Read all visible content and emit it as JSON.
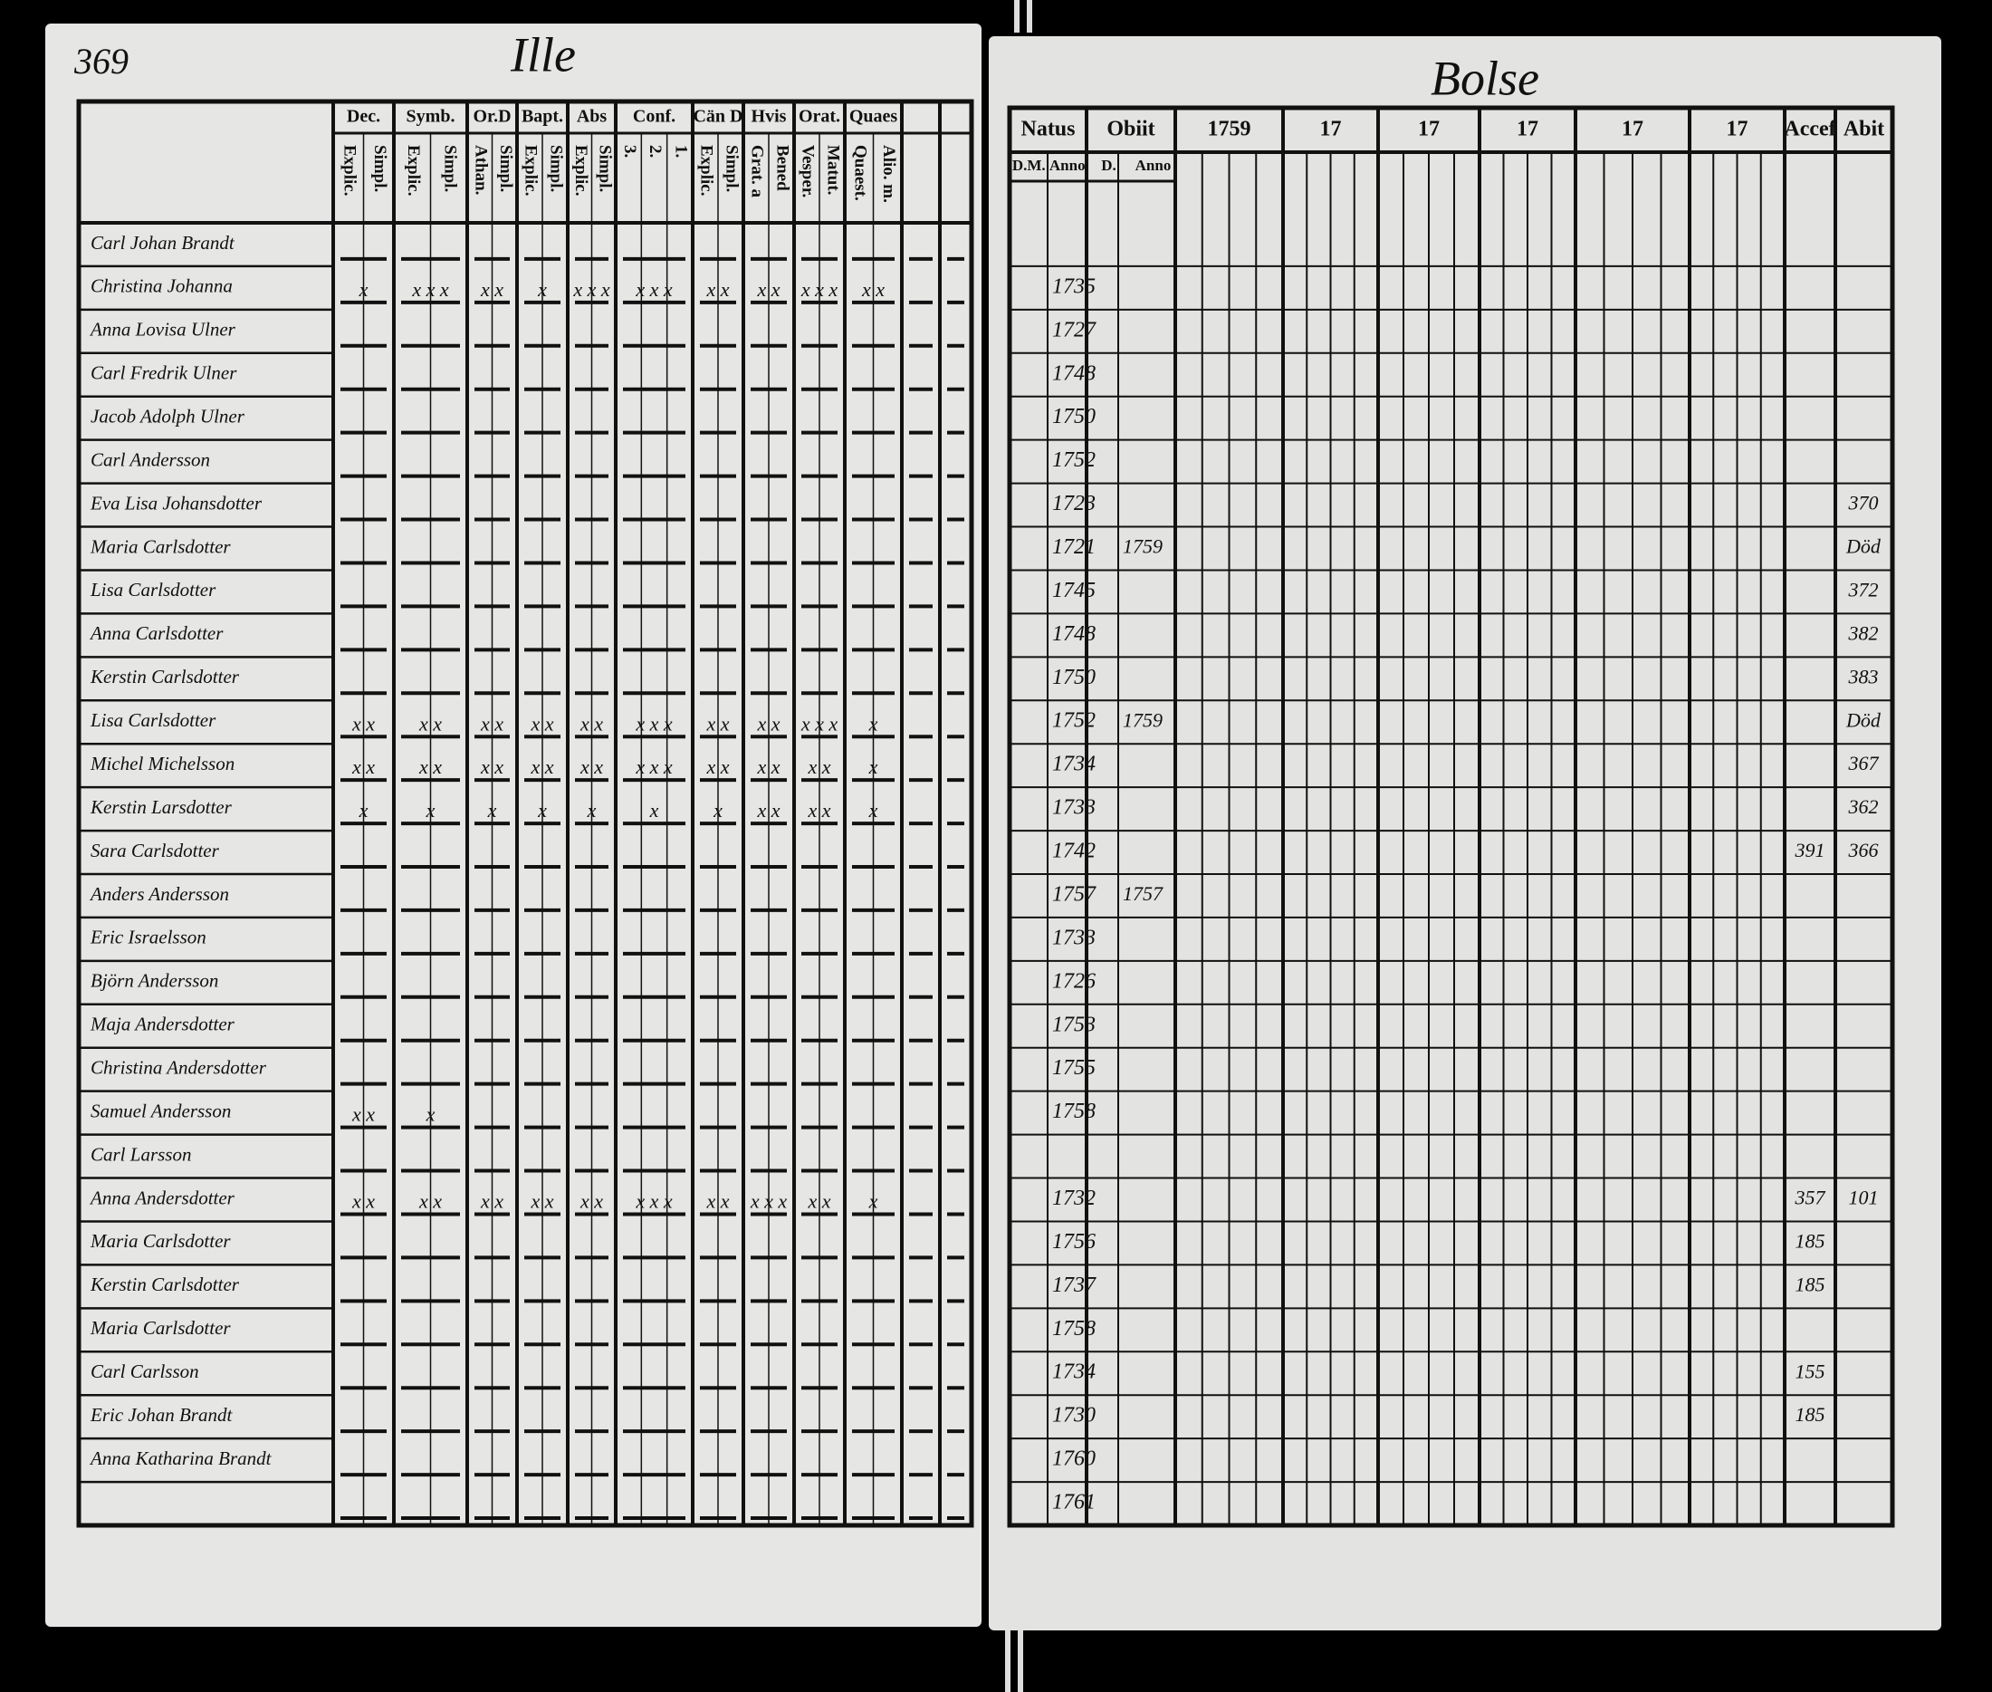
{
  "left_page": {
    "page_number": "369",
    "heading": "Ille",
    "columns": [
      {
        "title": "Dec.",
        "sub": [
          "Explic.",
          "Simpl."
        ]
      },
      {
        "title": "Symb.",
        "sub": [
          "Explic.",
          "Simpl."
        ]
      },
      {
        "title": "Or.D",
        "sub": [
          "Athan.",
          "Simpl."
        ]
      },
      {
        "title": "Bapt.",
        "sub": [
          "Explic.",
          "Simpl."
        ]
      },
      {
        "title": "Abs",
        "sub": [
          "Explic.",
          "Simpl."
        ]
      },
      {
        "title": "Conf.",
        "sub": [
          "3.",
          "2.",
          "1."
        ]
      },
      {
        "title": "Cän D",
        "sub": [
          "Explic.",
          "Simpl."
        ]
      },
      {
        "title": "Hvis",
        "sub": [
          "Grat. a",
          "Bened"
        ]
      },
      {
        "title": "Orat.",
        "sub": [
          "Vesper.",
          "Matut."
        ]
      },
      {
        "title": "Quaes",
        "sub": [
          "Quaest.",
          "Alio. m."
        ]
      }
    ]
  },
  "right_page": {
    "heading": "Bolse",
    "columns": [
      {
        "title": "Natus",
        "sub": [
          "D.M.",
          "Anno"
        ]
      },
      {
        "title": "Obiit",
        "sub": [
          "D.",
          "Anno"
        ]
      },
      {
        "title": "1759"
      },
      {
        "title": "17"
      },
      {
        "title": "17"
      },
      {
        "title": "17"
      },
      {
        "title": "17"
      },
      {
        "title": "17"
      },
      {
        "title": "Accef"
      },
      {
        "title": "Abit"
      }
    ]
  },
  "rows": [
    {
      "name": "Carl Johan Brandt"
    },
    {
      "name": "Christina Johanna",
      "born": "1735",
      "marks": [
        "x",
        "x x x",
        "x x",
        "x",
        "x x x",
        "x x x",
        "x x",
        "x x",
        "x x x",
        "x x"
      ]
    },
    {
      "name": "Anna Lovisa Ulner",
      "born": "1727"
    },
    {
      "name": "Carl Fredrik Ulner",
      "born": "1748"
    },
    {
      "name": "Jacob Adolph Ulner",
      "born": "1750"
    },
    {
      "name": "Carl Andersson",
      "born": "1752"
    },
    {
      "name": "Eva Lisa Johansdotter",
      "born": "1723",
      "abit": "370"
    },
    {
      "name": "Maria Carlsdotter",
      "born": "1721",
      "obiit": "1759",
      "abit": "Död"
    },
    {
      "name": "Lisa Carlsdotter",
      "born": "1745",
      "abit": "372"
    },
    {
      "name": "Anna Carlsdotter",
      "born": "1748",
      "abit": "382"
    },
    {
      "name": "Kerstin Carlsdotter",
      "born": "1750",
      "abit": "383"
    },
    {
      "name": "Lisa Carlsdotter",
      "born": "1752",
      "obiit": "1759",
      "abit": "Död",
      "marks": [
        "x x",
        "x x",
        "x x",
        "x x",
        "x x",
        "x x x",
        "x x",
        "x x",
        "x x x",
        "x"
      ]
    },
    {
      "name": "Michel Michelsson",
      "born": "1734",
      "abit": "367",
      "marks": [
        "x x",
        "x x",
        "x x",
        "x x",
        "x x",
        "x x x",
        "x x",
        "x x",
        "x x",
        "x"
      ]
    },
    {
      "name": "Kerstin Larsdotter",
      "born": "1733",
      "abit": "362",
      "marks": [
        "x",
        "x",
        "x",
        "x",
        "x",
        "x",
        "x",
        "x x",
        "x x",
        "x"
      ]
    },
    {
      "name": "Sara Carlsdotter",
      "born": "1742",
      "accessit": "391",
      "abit": "366"
    },
    {
      "name": "Anders Andersson",
      "born": "1757",
      "obiit": "1757"
    },
    {
      "name": "Eric Israelsson",
      "born": "1733"
    },
    {
      "name": "Björn Andersson",
      "born": "1726"
    },
    {
      "name": "Maja Andersdotter",
      "born": "1753"
    },
    {
      "name": "Christina Andersdotter",
      "born": "1755"
    },
    {
      "name": "Samuel Andersson",
      "born": "1758",
      "marks": [
        "x x",
        "x"
      ]
    },
    {
      "name": "Carl Larsson"
    },
    {
      "name": "Anna Andersdotter",
      "born": "1732",
      "accessit": "357",
      "abit": "101",
      "marks": [
        "x x",
        "x x",
        "x x",
        "x x",
        "x x",
        "x x x",
        "x x",
        "x x x",
        "x x",
        "x"
      ]
    },
    {
      "name": "Maria Carlsdotter",
      "born": "1756",
      "accessit": "185"
    },
    {
      "name": "Kerstin Carlsdotter",
      "born": "1737",
      "accessit": "185"
    },
    {
      "name": "Maria Carlsdotter",
      "born": "1758"
    },
    {
      "name": "Carl Carlsson",
      "born": "1734",
      "accessit": "155"
    },
    {
      "name": "Eric Johan Brandt",
      "born": "1730",
      "accessit": "185"
    },
    {
      "name": "Anna Katharina Brandt",
      "born": "1760"
    },
    {
      "born": "1761"
    }
  ]
}
